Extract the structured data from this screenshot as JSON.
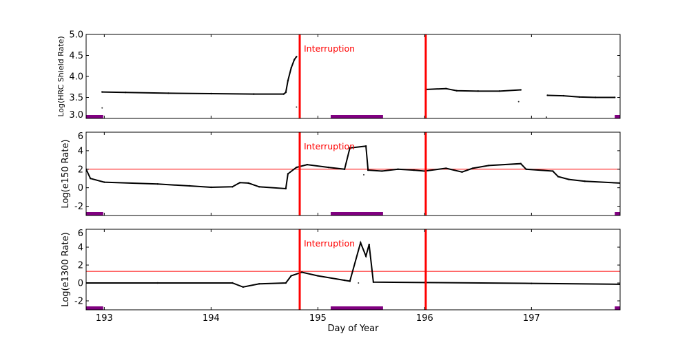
{
  "chart_data": [
    {
      "type": "scatter",
      "ylabel": "Log(HRC Shield Rate)",
      "ylim": [
        3.0,
        5.0
      ],
      "yticks": [
        "3.0",
        "3.5",
        "4.0",
        "4.5",
        "5.0"
      ],
      "ytick_values": [
        3.0,
        3.5,
        4.0,
        4.5,
        5.0
      ],
      "threshold": null,
      "annotation": "Interruption",
      "segments": [
        {
          "x": [
            192.98,
            193.2,
            193.6,
            194.0,
            194.4,
            194.68,
            194.7,
            194.72,
            194.75,
            194.78,
            194.8
          ],
          "y": [
            3.63,
            3.62,
            3.6,
            3.59,
            3.58,
            3.58,
            3.62,
            3.9,
            4.2,
            4.4,
            4.47
          ]
        },
        {
          "x": [
            196.02,
            196.2,
            196.3,
            196.5,
            196.7,
            196.9
          ],
          "y": [
            3.69,
            3.71,
            3.66,
            3.65,
            3.65,
            3.68
          ]
        },
        {
          "x": [
            197.15,
            197.3,
            197.45,
            197.6,
            197.78
          ],
          "y": [
            3.55,
            3.54,
            3.51,
            3.5,
            3.5
          ]
        }
      ],
      "outliers": {
        "x": [
          192.98,
          194.8,
          196.88,
          197.14
        ],
        "y": [
          3.25,
          3.27,
          3.4,
          3.03
        ]
      }
    },
    {
      "type": "scatter",
      "ylabel": "Log(e150  Rate)",
      "ylim": [
        -3,
        6
      ],
      "yticks": [
        "-2",
        "0",
        "2",
        "4",
        "6"
      ],
      "ytick_values": [
        -2,
        0,
        2,
        4,
        6
      ],
      "threshold": 2.0,
      "annotation": "Interruption",
      "segments": [
        {
          "x": [
            192.83,
            192.87,
            193.0,
            193.5,
            193.8,
            194.0,
            194.2,
            194.27,
            194.35,
            194.45,
            194.7,
            194.72,
            194.8,
            194.9,
            195.1,
            195.25,
            195.3,
            195.45,
            195.47,
            195.6,
            195.75,
            195.9,
            196.0,
            196.2,
            196.35,
            196.45,
            196.6,
            196.9,
            196.95,
            197.2,
            197.25,
            197.35,
            197.5,
            197.83
          ],
          "y": [
            2.0,
            1.0,
            0.6,
            0.4,
            0.2,
            0.05,
            0.1,
            0.55,
            0.5,
            0.1,
            -0.1,
            1.5,
            2.2,
            2.5,
            2.2,
            2.0,
            4.3,
            4.5,
            1.9,
            1.8,
            2.0,
            1.9,
            1.8,
            2.1,
            1.7,
            2.1,
            2.4,
            2.6,
            2.0,
            1.8,
            1.2,
            0.9,
            0.7,
            0.5
          ]
        }
      ],
      "outliers": {
        "x": [
          195.43
        ],
        "y": [
          1.4
        ]
      }
    },
    {
      "type": "scatter",
      "xlabel": "Day of Year",
      "ylabel": "Log(e1300 Rate)",
      "ylim": [
        -3,
        6
      ],
      "yticks": [
        "-2",
        "0",
        "2",
        "4",
        "6"
      ],
      "ytick_values": [
        -2,
        0,
        2,
        4,
        6
      ],
      "threshold": 1.3,
      "annotation": "Interruption",
      "segments": [
        {
          "x": [
            192.83,
            193.5,
            194.2,
            194.3,
            194.45,
            194.7,
            194.75,
            194.85,
            195.0,
            195.25,
            195.3,
            195.4,
            195.45,
            195.48,
            195.52,
            196.0,
            197.0,
            197.83
          ],
          "y": [
            0,
            0,
            0,
            -0.45,
            -0.1,
            0,
            0.8,
            1.2,
            0.8,
            0.3,
            0.2,
            4.5,
            3.0,
            4.3,
            0.1,
            0.05,
            -0.05,
            -0.15
          ]
        }
      ],
      "outliers": {
        "x": [
          195.38
        ],
        "y": [
          0.0
        ]
      }
    }
  ],
  "x_axis": {
    "xlim": [
      192.83,
      197.83
    ],
    "xticks": [
      "193",
      "194",
      "195",
      "196",
      "197"
    ],
    "xtick_values": [
      193,
      194,
      195,
      196,
      197
    ]
  },
  "interruptions": [
    194.83,
    196.01
  ],
  "purple_intervals": [
    [
      192.83,
      192.99
    ],
    [
      195.12,
      195.61
    ],
    [
      197.78,
      197.83
    ]
  ],
  "colors": {
    "interruption": "#ff0000",
    "threshold": "#ff0000",
    "interval": "#800080",
    "data": "#000000"
  }
}
